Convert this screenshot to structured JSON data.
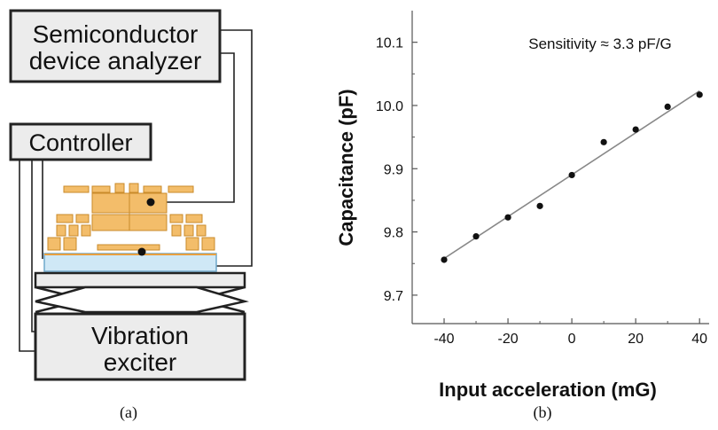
{
  "diagram": {
    "analyzer_line1": "Semiconductor",
    "analyzer_line2": "device analyzer",
    "controller": "Controller",
    "exciter_line1": "Vibration",
    "exciter_line2": "exciter",
    "colors": {
      "box_fill": "#ececec",
      "chip_orange": "#f3bd6a",
      "chip_outline": "#c98a2a",
      "substrate_blue": "#cfe8f6",
      "substrate_outline": "#6fa9cc"
    }
  },
  "captions": {
    "a": "(a)",
    "b": "(b)"
  },
  "chart_data": {
    "type": "scatter",
    "xlabel": "Input acceleration (mG)",
    "ylabel": "Capacitance (pF)",
    "annotation": "Sensitivity ≈ 3.3 pF/G",
    "xlim": [
      -50,
      43
    ],
    "ylim": [
      9.655,
      10.15
    ],
    "xticks": [
      -40,
      -20,
      0,
      20,
      40
    ],
    "yticks": [
      9.7,
      9.8,
      9.9,
      10.0,
      10.1
    ],
    "ytick_labels": [
      "9.7",
      "9.8",
      "9.9",
      "10.0",
      "10.1"
    ],
    "x": [
      -40,
      -30,
      -20,
      -10,
      0,
      10,
      20,
      30,
      40
    ],
    "y": [
      9.756,
      9.793,
      9.823,
      9.841,
      9.89,
      9.942,
      9.962,
      9.998,
      10.017
    ],
    "fit": {
      "x": [
        -40,
        40
      ],
      "y": [
        9.758,
        10.023
      ]
    },
    "grid": false,
    "colors": {
      "points": "#111111",
      "fit": "#888888",
      "axis": "#555555"
    }
  }
}
